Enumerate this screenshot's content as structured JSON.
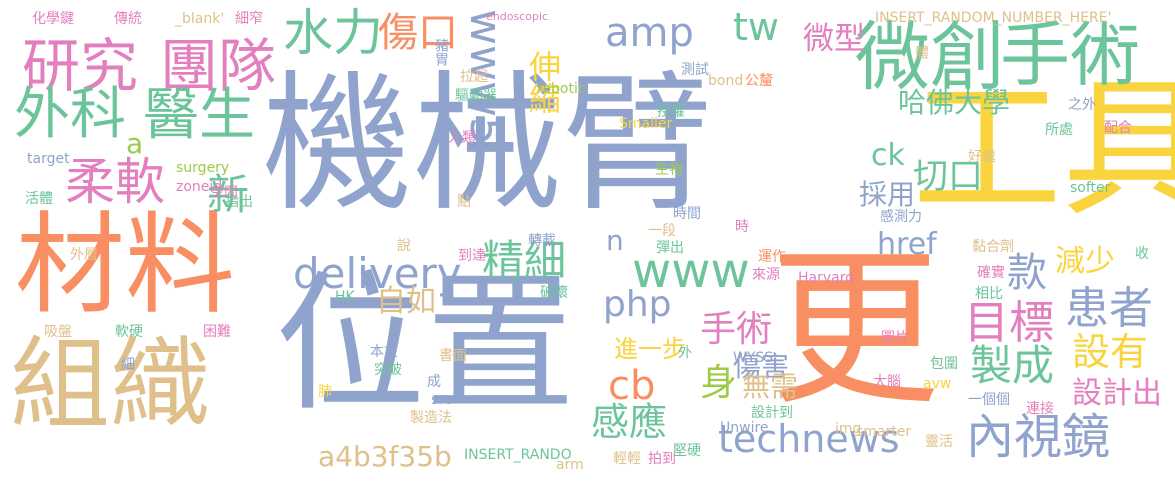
{
  "palette": {
    "blue": "#8FA3CC",
    "yellow": "#FAD43F",
    "orange": "#F98E62",
    "tan": "#DFC08A",
    "green": "#6CC49A",
    "pink": "#E37FBE",
    "lime": "#9CCB48"
  },
  "words": [
    {
      "text": "機械臂",
      "color": "blue"
    },
    {
      "text": "位置",
      "color": "blue"
    },
    {
      "text": "更",
      "color": "orange"
    },
    {
      "text": "工具",
      "color": "yellow"
    },
    {
      "text": "材料",
      "color": "orange"
    },
    {
      "text": "組織",
      "color": "tan"
    },
    {
      "text": "微創",
      "color": "green"
    },
    {
      "text": "手術",
      "color": "green"
    },
    {
      "text": "研究",
      "color": "pink"
    },
    {
      "text": "團隊",
      "color": "pink"
    },
    {
      "text": "外科",
      "color": "green"
    },
    {
      "text": "醫生",
      "color": "green"
    },
    {
      "text": "柔軟",
      "color": "pink"
    },
    {
      "text": "水力",
      "color": "green"
    },
    {
      "text": "傷口",
      "color": "orange"
    },
    {
      "text": "www5",
      "color": "blue"
    },
    {
      "text": "amp",
      "color": "blue"
    },
    {
      "text": "tw",
      "color": "green"
    },
    {
      "text": "微型",
      "color": "pink"
    },
    {
      "text": "delivery",
      "color": "blue"
    },
    {
      "text": "精細",
      "color": "green"
    },
    {
      "text": "www",
      "color": "green"
    },
    {
      "text": "php",
      "color": "blue"
    },
    {
      "text": "自如",
      "color": "tan"
    },
    {
      "text": "手術",
      "color": "pink"
    },
    {
      "text": "進一步",
      "color": "yellow"
    },
    {
      "text": "身",
      "color": "lime"
    },
    {
      "text": "cb",
      "color": "orange"
    },
    {
      "text": "感應",
      "color": "green"
    },
    {
      "text": "technews",
      "color": "blue"
    },
    {
      "text": "a4b3f35b",
      "color": "tan"
    },
    {
      "text": "內視鏡",
      "color": "blue"
    },
    {
      "text": "目標",
      "color": "pink"
    },
    {
      "text": "製成",
      "color": "green"
    },
    {
      "text": "患者",
      "color": "blue"
    },
    {
      "text": "設有",
      "color": "yellow"
    },
    {
      "text": "款",
      "color": "blue"
    },
    {
      "text": "減少",
      "color": "yellow"
    },
    {
      "text": "設計出",
      "color": "pink"
    },
    {
      "text": "哈佛大學",
      "color": "green"
    },
    {
      "text": "ck",
      "color": "green"
    },
    {
      "text": "採用",
      "color": "blue"
    },
    {
      "text": "切口",
      "color": "green"
    },
    {
      "text": "href",
      "color": "blue"
    },
    {
      "text": "伸縮",
      "color": "yellow"
    },
    {
      "text": "傷害",
      "color": "blue"
    },
    {
      "text": "無需",
      "color": "tan"
    },
    {
      "text": "新",
      "color": "green"
    },
    {
      "text": "a",
      "color": "lime"
    },
    {
      "text": "n",
      "color": "blue"
    },
    {
      "text": "化學鍵",
      "color": "pink"
    },
    {
      "text": "傳統",
      "color": "pink"
    },
    {
      "text": "_blank'",
      "color": "tan"
    },
    {
      "text": "細窄",
      "color": "pink"
    },
    {
      "text": "endoscopic",
      "color": "pink"
    },
    {
      "text": "INSERT_RANDOM_NUMBER_HERE'",
      "color": "tan"
    },
    {
      "text": "豬胃",
      "color": "blue"
    },
    {
      "text": "拉起",
      "color": "tan"
    },
    {
      "text": "驅動器",
      "color": "green"
    },
    {
      "text": "測試",
      "color": "blue"
    },
    {
      "text": "bond",
      "color": "tan"
    },
    {
      "text": "公釐",
      "color": "orange"
    },
    {
      "text": "robotic",
      "color": "lime"
    },
    {
      "text": "授權",
      "color": "green"
    },
    {
      "text": "人類",
      "color": "pink"
    },
    {
      "text": "Smaller",
      "color": "yellow"
    },
    {
      "text": "target",
      "color": "blue"
    },
    {
      "text": "surgery",
      "color": "lime"
    },
    {
      "text": "zoneid",
      "color": "pink"
    },
    {
      "text": "生物",
      "color": "lime"
    },
    {
      "text": "空間",
      "color": "pink"
    },
    {
      "text": "指出",
      "color": "green"
    },
    {
      "text": "活體",
      "color": "green"
    },
    {
      "text": "點",
      "color": "tan"
    },
    {
      "text": "時間",
      "color": "blue"
    },
    {
      "text": "時",
      "color": "pink"
    },
    {
      "text": "一段",
      "color": "tan"
    },
    {
      "text": "到達",
      "color": "pink"
    },
    {
      "text": "轉載",
      "color": "blue"
    },
    {
      "text": "彈出",
      "color": "green"
    },
    {
      "text": "說",
      "color": "tan"
    },
    {
      "text": "外層",
      "color": "tan"
    },
    {
      "text": "吸盤",
      "color": "tan"
    },
    {
      "text": "軟硬",
      "color": "green"
    },
    {
      "text": "困難",
      "color": "pink"
    },
    {
      "text": "HK",
      "color": "green"
    },
    {
      "text": "細",
      "color": "blue"
    },
    {
      "text": "破壞",
      "color": "green"
    },
    {
      "text": "運作",
      "color": "orange"
    },
    {
      "text": "來源",
      "color": "pink"
    },
    {
      "text": "Harvard",
      "color": "pink"
    },
    {
      "text": "外",
      "color": "green"
    },
    {
      "text": "WYSS",
      "color": "blue"
    },
    {
      "text": "本文",
      "color": "blue"
    },
    {
      "text": "突破",
      "color": "green"
    },
    {
      "text": "書面",
      "color": "tan"
    },
    {
      "text": "成",
      "color": "blue"
    },
    {
      "text": "肺",
      "color": "yellow"
    },
    {
      "text": "src",
      "color": "blue"
    },
    {
      "text": "製造法",
      "color": "tan"
    },
    {
      "text": "INSERT_RANDO",
      "color": "green"
    },
    {
      "text": "arm",
      "color": "tan"
    },
    {
      "text": "設計到",
      "color": "green"
    },
    {
      "text": "Unwire",
      "color": "blue"
    },
    {
      "text": "img",
      "color": "tan"
    },
    {
      "text": "smarter",
      "color": "tan"
    },
    {
      "text": "輕輕",
      "color": "tan"
    },
    {
      "text": "拍到",
      "color": "pink"
    },
    {
      "text": "堅硬",
      "color": "green"
    },
    {
      "text": "一個個",
      "color": "blue"
    },
    {
      "text": "大腦",
      "color": "pink"
    },
    {
      "text": "avw",
      "color": "yellow"
    },
    {
      "text": "包圍",
      "color": "green"
    },
    {
      "text": "圖片",
      "color": "pink"
    },
    {
      "text": "連接",
      "color": "pink"
    },
    {
      "text": "靈活",
      "color": "tan"
    },
    {
      "text": "相比",
      "color": "green"
    },
    {
      "text": "確實",
      "color": "pink"
    },
    {
      "text": "黏合劑",
      "color": "tan"
    },
    {
      "text": "softer",
      "color": "green"
    },
    {
      "text": "感測力",
      "color": "blue"
    },
    {
      "text": "好處",
      "color": "tan"
    },
    {
      "text": "所處",
      "color": "green"
    },
    {
      "text": "之外",
      "color": "blue"
    },
    {
      "text": "配合",
      "color": "pink"
    },
    {
      "text": "收",
      "color": "green"
    },
    {
      "text": "體",
      "color": "tan"
    }
  ]
}
